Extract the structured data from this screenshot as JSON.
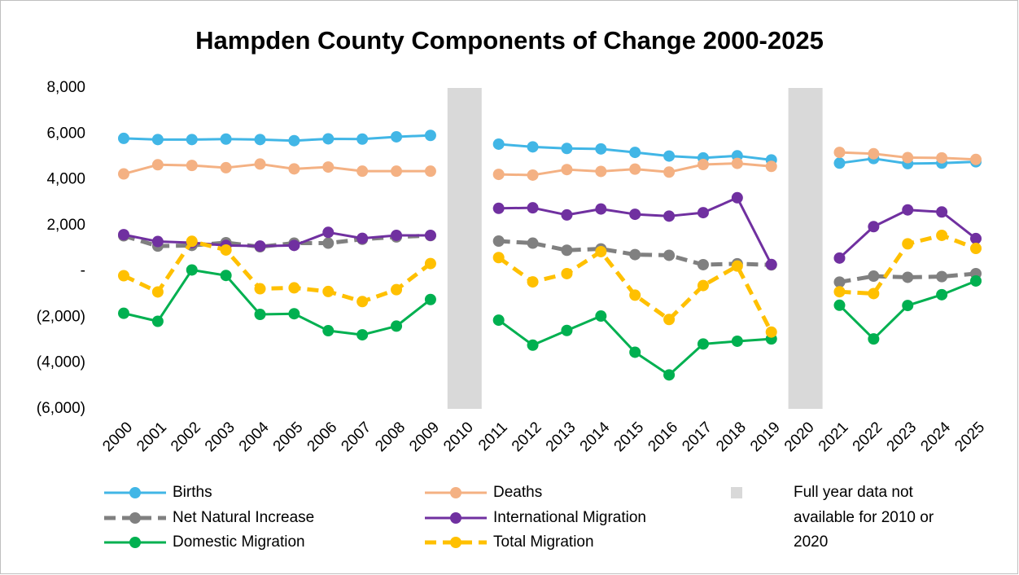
{
  "chart_data": {
    "type": "line",
    "title": "Hampden County Components of Change 2000-2025",
    "categories": [
      "2000",
      "2001",
      "2002",
      "2003",
      "2004",
      "2005",
      "2006",
      "2007",
      "2008",
      "2009",
      "2010",
      "2011",
      "2012",
      "2013",
      "2014",
      "2015",
      "2016",
      "2017",
      "2018",
      "2019",
      "2020",
      "2021",
      "2022",
      "2023",
      "2024",
      "2025"
    ],
    "series": [
      {
        "name": "Births",
        "color": "#41b6e6",
        "dashed": false,
        "values": [
          5800,
          5750,
          5750,
          5770,
          5750,
          5700,
          5780,
          5770,
          5870,
          5930,
          null,
          5550,
          5430,
          5360,
          5340,
          5190,
          5030,
          4950,
          5040,
          4860,
          null,
          4720,
          4920,
          4700,
          4720,
          4780
        ]
      },
      {
        "name": "Deaths",
        "color": "#f4b183",
        "dashed": false,
        "values": [
          4250,
          4650,
          4620,
          4520,
          4680,
          4470,
          4550,
          4370,
          4370,
          4370,
          null,
          4230,
          4200,
          4440,
          4360,
          4460,
          4330,
          4660,
          4710,
          4580,
          null,
          5190,
          5130,
          4960,
          4950,
          4880
        ]
      },
      {
        "name": "Net Natural Increase",
        "color": "#808080",
        "dashed": true,
        "values": [
          1550,
          1100,
          1130,
          1250,
          1070,
          1230,
          1230,
          1400,
          1500,
          1560,
          null,
          1320,
          1230,
          920,
          980,
          730,
          700,
          290,
          330,
          280,
          null,
          -470,
          -210,
          -260,
          -230,
          -100
        ]
      },
      {
        "name": "International Migration",
        "color": "#7030a0",
        "dashed": false,
        "values": [
          1600,
          1300,
          1250,
          1130,
          1100,
          1130,
          1700,
          1440,
          1570,
          1570,
          null,
          2750,
          2770,
          2460,
          2720,
          2490,
          2410,
          2560,
          3210,
          300,
          null,
          580,
          1950,
          2680,
          2590,
          1430
        ]
      },
      {
        "name": "Domestic Migration",
        "color": "#00b050",
        "dashed": false,
        "values": [
          -1830,
          -2180,
          60,
          -180,
          -1880,
          -1850,
          -2590,
          -2770,
          -2390,
          -1230,
          null,
          -2130,
          -3220,
          -2580,
          -1950,
          -3530,
          -4520,
          -3170,
          -3050,
          -2950,
          null,
          -1480,
          -2950,
          -1490,
          -1020,
          -420
        ]
      },
      {
        "name": "Total Migration",
        "color": "#ffc000",
        "dashed": true,
        "values": [
          -190,
          -900,
          1310,
          930,
          -760,
          -720,
          -880,
          -1320,
          -800,
          340,
          null,
          600,
          -460,
          -100,
          860,
          -1040,
          -2100,
          -620,
          230,
          -2650,
          null,
          -890,
          -970,
          1200,
          1570,
          1000
        ]
      },
      {
        "name": "Full year data not available for 2010 or 2020",
        "color": "#d9d9d9",
        "type": "bar",
        "values": [
          null,
          null,
          null,
          null,
          null,
          null,
          null,
          null,
          null,
          null,
          8000,
          null,
          null,
          null,
          null,
          null,
          null,
          null,
          null,
          null,
          8000,
          null,
          null,
          null,
          null,
          null
        ]
      }
    ],
    "ylim": [
      -6000,
      8000
    ],
    "yticks": [
      {
        "value": -6000,
        "label": "(6,000)"
      },
      {
        "value": -4000,
        "label": "(4,000)"
      },
      {
        "value": -2000,
        "label": "(2,000)"
      },
      {
        "value": 0,
        "label": "-"
      },
      {
        "value": 2000,
        "label": "2,000"
      },
      {
        "value": 4000,
        "label": "4,000"
      },
      {
        "value": 6000,
        "label": "6,000"
      },
      {
        "value": 8000,
        "label": "8,000"
      }
    ],
    "grid": false,
    "legend": "bottom"
  }
}
